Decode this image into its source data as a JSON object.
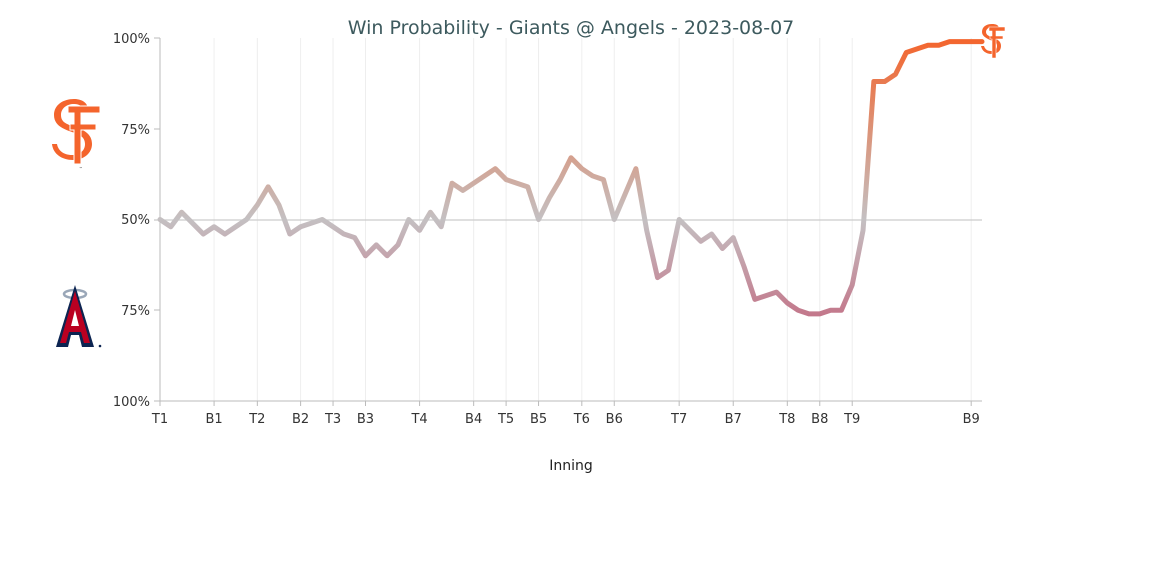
{
  "chart_data": {
    "type": "line",
    "title": "Win Probability - Giants @ Angels - 2023-08-07",
    "xlabel": "Inning",
    "ylabel": "",
    "y_tick_labels": [
      "100%",
      "75%",
      "50%",
      "75%",
      "100%"
    ],
    "inning_labels": [
      {
        "label": "T1",
        "index": 0
      },
      {
        "label": "B1",
        "index": 5
      },
      {
        "label": "T2",
        "index": 9
      },
      {
        "label": "B2",
        "index": 13
      },
      {
        "label": "T3",
        "index": 16
      },
      {
        "label": "B3",
        "index": 19
      },
      {
        "label": "T4",
        "index": 24
      },
      {
        "label": "B4",
        "index": 29
      },
      {
        "label": "T5",
        "index": 32
      },
      {
        "label": "B5",
        "index": 35
      },
      {
        "label": "T6",
        "index": 39
      },
      {
        "label": "B6",
        "index": 42
      },
      {
        "label": "T7",
        "index": 48
      },
      {
        "label": "B7",
        "index": 53
      },
      {
        "label": "T8",
        "index": 58
      },
      {
        "label": "B8",
        "index": 61
      },
      {
        "label": "T9",
        "index": 64
      },
      {
        "label": "B9",
        "index": 75
      }
    ],
    "series": [
      {
        "values": [
          50,
          48,
          52,
          49,
          46,
          48,
          46,
          48,
          50,
          54,
          59,
          54,
          46,
          48,
          49,
          50,
          48,
          46,
          45,
          40,
          43,
          40,
          43,
          50,
          47,
          52,
          48,
          60,
          58,
          60,
          62,
          64,
          61,
          60,
          59,
          50,
          56,
          61,
          67,
          64,
          62,
          61,
          50,
          57,
          64,
          47,
          34,
          36,
          50,
          47,
          44,
          46,
          42,
          45,
          37,
          28,
          29,
          30,
          27,
          25,
          24,
          24,
          25,
          25,
          32,
          47,
          88,
          88,
          90,
          96,
          97,
          98,
          98,
          99,
          99,
          99,
          99
        ]
      }
    ],
    "ylim": [
      0,
      100
    ],
    "colors": {
      "giants": "#f4642c",
      "angels": "#c2375a",
      "neutral": "#c4c0c2",
      "grid": "#eeeeee",
      "midline": "#cccccc",
      "axis": "#bbbbbb"
    },
    "team_logos": {
      "top": "giants-sf-logo",
      "bottom": "angels-a-logo",
      "end_marker": "giants-sf-logo"
    }
  }
}
